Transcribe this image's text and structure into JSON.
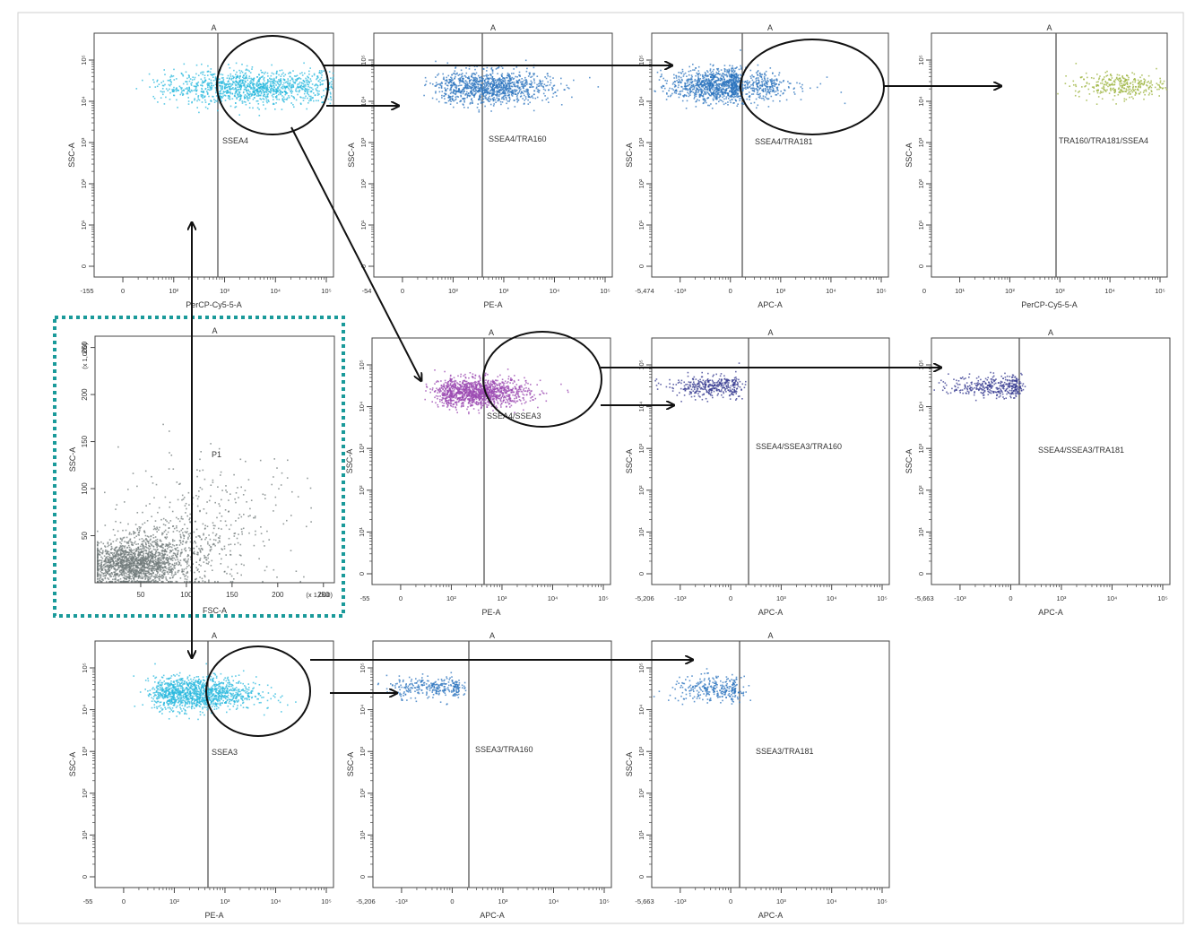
{
  "colors": {
    "axis": "#444444",
    "gate": "#555555",
    "arrow": "#111111",
    "highlight_box": "#1a9a9a",
    "gray": "#707a7a",
    "cyan": "#29b8de",
    "blue": "#2b73bd",
    "purple": "#9a47b0",
    "navy": "#34388f",
    "green": "#9ab23a"
  },
  "chart_data": [
    {
      "id": "p1",
      "type": "scatter",
      "top_label": "A",
      "xlabel": "FSC-A",
      "ylabel": "SSC-A",
      "x_multiplier": "(x 1,000)",
      "y_multiplier": "(x 1,000)",
      "x_ticks": [
        "50",
        "100",
        "150",
        "200",
        "250"
      ],
      "y_ticks": [
        "50",
        "100",
        "150",
        "200",
        "250"
      ],
      "xlim": [
        0,
        262
      ],
      "ylim": [
        0,
        262
      ],
      "gate_label": "P1",
      "dot_color": "gray",
      "points": [
        {
          "cx": 40,
          "cy": 20,
          "sx": 25,
          "sy": 11,
          "n": 1400
        },
        {
          "cx": 75,
          "cy": 35,
          "sx": 35,
          "sy": 17,
          "n": 500
        },
        {
          "cx": 130,
          "cy": 70,
          "sx": 50,
          "sy": 35,
          "n": 260
        }
      ]
    },
    {
      "id": "ssea4",
      "type": "scatter",
      "top_label": "A",
      "xlabel": "PerCP-Cy5-5-A",
      "ylabel": "SSC-A",
      "x_min_label": "-155",
      "x_ticks": [
        "0",
        "10²",
        "10³",
        "10⁴",
        "10⁵"
      ],
      "y_ticks": [
        "10⁵",
        "10⁴",
        "10³",
        "10²",
        "10¹",
        "0"
      ],
      "gate_label": "SSEA4",
      "dot_color": "cyan",
      "points": [
        {
          "cx": 3.6,
          "cy": 4.35,
          "sx": 0.95,
          "sy": 0.2,
          "n": 1300
        }
      ]
    },
    {
      "id": "ssea4_tra160",
      "type": "scatter",
      "top_label": "A",
      "xlabel": "PE-A",
      "ylabel": "SSC-A",
      "x_min_label": "-54",
      "x_ticks": [
        "0",
        "10²",
        "10³",
        "10⁴",
        "10⁵"
      ],
      "y_ticks": [
        "10⁵",
        "10⁴",
        "10³",
        "10²",
        "10¹",
        "0"
      ],
      "gate_label": "SSEA4/TRA160",
      "dot_color": "blue",
      "points": [
        {
          "cx": 2.7,
          "cy": 4.35,
          "sx": 0.6,
          "sy": 0.2,
          "n": 1100
        }
      ]
    },
    {
      "id": "ssea4_tra181",
      "type": "scatter",
      "top_label": "A",
      "xlabel": "APC-A",
      "ylabel": "SSC-A",
      "x_min_label": "-5,474",
      "x_ticks": [
        "-10³",
        "0",
        "10³",
        "10⁴",
        "10⁵"
      ],
      "y_ticks": [
        "10⁵",
        "10⁴",
        "10³",
        "10²",
        "10¹",
        "0"
      ],
      "gate_label": "SSEA4/TRA181",
      "dot_color": "blue",
      "points": [
        {
          "cx": -0.3,
          "cy": 4.4,
          "sx": 0.45,
          "sy": 0.2,
          "n": 1000
        },
        {
          "cx": 2.0,
          "cy": 4.4,
          "sx": 0.8,
          "sy": 0.2,
          "n": 280
        }
      ]
    },
    {
      "id": "tra160_tra181_ssea4",
      "type": "scatter",
      "top_label": "A",
      "xlabel": "PerCP-Cy5-5-A",
      "ylabel": "SSC-A",
      "x_min_label": "0",
      "x_ticks": [
        "10¹",
        "10²",
        "10³",
        "10⁴",
        "10⁵"
      ],
      "y_ticks": [
        "10⁵",
        "10⁴",
        "10³",
        "10²",
        "10¹",
        "0"
      ],
      "gate_label": "TRA160/TRA181/SSEA4",
      "dot_color": "green",
      "points": [
        {
          "cx": 4.2,
          "cy": 4.4,
          "sx": 0.45,
          "sy": 0.15,
          "n": 320
        }
      ]
    },
    {
      "id": "ssea4_ssea3",
      "type": "scatter",
      "top_label": "A",
      "xlabel": "PE-A",
      "ylabel": "SSC-A",
      "x_min_label": "-55",
      "x_ticks": [
        "0",
        "10²",
        "10³",
        "10⁴",
        "10⁵"
      ],
      "y_ticks": [
        "10⁵",
        "10⁴",
        "10³",
        "10²",
        "10¹",
        "0"
      ],
      "gate_label": "SSEA4/SSEA3",
      "dot_color": "purple",
      "points": [
        {
          "cx": 2.5,
          "cy": 4.35,
          "sx": 0.5,
          "sy": 0.17,
          "n": 1300
        }
      ]
    },
    {
      "id": "ssea4_ssea3_tra160",
      "type": "scatter",
      "top_label": "A",
      "xlabel": "APC-A",
      "ylabel": "SSC-A",
      "x_min_label": "-5,206",
      "x_ticks": [
        "-10³",
        "0",
        "10³",
        "10⁴",
        "10⁵"
      ],
      "y_ticks": [
        "10⁵",
        "10⁴",
        "10³",
        "10²",
        "10¹",
        "0"
      ],
      "gate_label": "SSEA4/SSEA3/TRA160",
      "dot_color": "navy",
      "points": [
        {
          "cx": -0.4,
          "cy": 4.5,
          "sx": 0.45,
          "sy": 0.13,
          "n": 360
        }
      ]
    },
    {
      "id": "ssea4_ssea3_tra181",
      "type": "scatter",
      "top_label": "A",
      "xlabel": "APC-A",
      "ylabel": "SSC-A",
      "x_min_label": "-5,663",
      "x_ticks": [
        "-10³",
        "0",
        "10³",
        "10⁴",
        "10⁵"
      ],
      "y_ticks": [
        "10⁵",
        "10⁴",
        "10³",
        "10²",
        "10¹",
        "0"
      ],
      "gate_label": "SSEA4/SSEA3/TRA181",
      "dot_color": "navy",
      "points": [
        {
          "cx": -0.3,
          "cy": 4.5,
          "sx": 0.45,
          "sy": 0.13,
          "n": 360
        }
      ]
    },
    {
      "id": "ssea3",
      "type": "scatter",
      "top_label": "A",
      "xlabel": "PE-A",
      "ylabel": "SSC-A",
      "x_min_label": "-55",
      "x_ticks": [
        "0",
        "10²",
        "10³",
        "10⁴",
        "10⁵"
      ],
      "y_ticks": [
        "10⁵",
        "10⁴",
        "10³",
        "10²",
        "10¹",
        "0"
      ],
      "gate_label": "SSEA3",
      "dot_color": "cyan",
      "points": [
        {
          "cx": 2.4,
          "cy": 4.4,
          "sx": 0.6,
          "sy": 0.2,
          "n": 1300
        }
      ]
    },
    {
      "id": "ssea3_tra160",
      "type": "scatter",
      "top_label": "A",
      "xlabel": "APC-A",
      "ylabel": "SSC-A",
      "x_min_label": "-5,206",
      "x_ticks": [
        "-10³",
        "0",
        "10³",
        "10⁴",
        "10⁵"
      ],
      "y_ticks": [
        "10⁵",
        "10⁴",
        "10³",
        "10²",
        "10¹",
        "0"
      ],
      "gate_label": "SSEA3/TRA160",
      "dot_color": "blue",
      "points": [
        {
          "cx": -0.4,
          "cy": 4.55,
          "sx": 0.45,
          "sy": 0.13,
          "n": 300
        }
      ]
    },
    {
      "id": "ssea3_tra181",
      "type": "scatter",
      "top_label": "A",
      "xlabel": "APC-A",
      "ylabel": "SSC-A",
      "x_min_label": "-5,663",
      "x_ticks": [
        "-10³",
        "0",
        "10³",
        "10⁴",
        "10⁵"
      ],
      "y_ticks": [
        "10⁵",
        "10⁴",
        "10³",
        "10²",
        "10¹",
        "0"
      ],
      "gate_label": "SSEA3/TRA181",
      "dot_color": "blue",
      "points": [
        {
          "cx": -0.3,
          "cy": 4.5,
          "sx": 0.45,
          "sy": 0.15,
          "n": 300
        }
      ]
    }
  ]
}
